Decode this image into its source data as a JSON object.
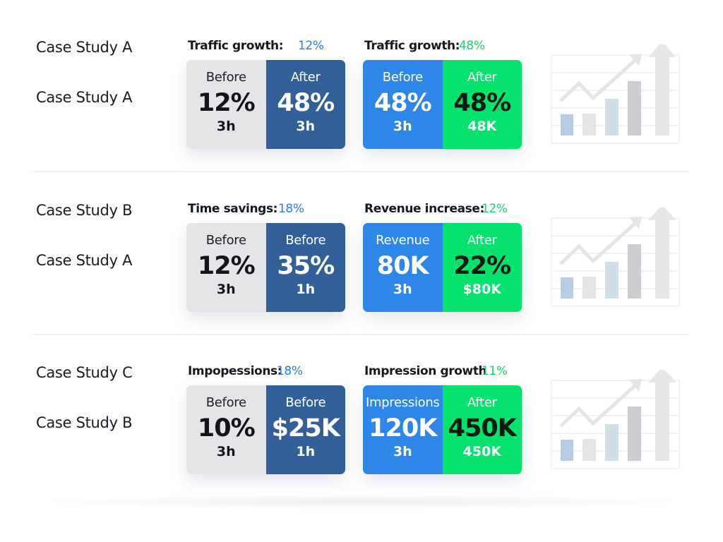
{
  "colors": {
    "light": "#e5e5e7",
    "dark_blue": "#335f98",
    "blue": "#2e86e8",
    "green": "#05e36e",
    "blue_text": "#2a7de1",
    "green_text": "#1fd46a"
  },
  "rows": [
    {
      "case_labels": [
        "Case Study A",
        "Case Study A"
      ],
      "left": {
        "title": "Traffic growth:",
        "pct": "12%",
        "before": {
          "label": "Before",
          "value": "12%",
          "sub": "3h"
        },
        "after": {
          "label": "After",
          "value": "48%",
          "sub": "3h"
        }
      },
      "right": {
        "title": "Traffic growth:",
        "pct": "48%",
        "before": {
          "label": "Before",
          "value": "48%",
          "sub": "3h"
        },
        "after": {
          "label": "After",
          "value": "48%",
          "sub": "48K"
        }
      }
    },
    {
      "case_labels": [
        "Case Study B",
        "Case Study A"
      ],
      "left": {
        "title": "Time savings:",
        "pct": "18%",
        "before": {
          "label": "Before",
          "value": "12%",
          "sub": "3h"
        },
        "after": {
          "label": "Before",
          "value": "35%",
          "sub": "1h"
        }
      },
      "right": {
        "title": "Revenue increase:",
        "pct": "12%",
        "before": {
          "label": "Revenue",
          "value": "80K",
          "sub": "3h"
        },
        "after": {
          "label": "After",
          "value": "22%",
          "sub": "$80K"
        }
      }
    },
    {
      "case_labels": [
        "Case Study C",
        "Case Study B"
      ],
      "left": {
        "title": "Impopessions:",
        "pct": "18%",
        "before": {
          "label": "Before",
          "value": "10%",
          "sub": "3h"
        },
        "after": {
          "label": "Before",
          "value": "$25K",
          "sub": "1h"
        }
      },
      "right": {
        "title": "Impression growth",
        "pct": "11%",
        "before": {
          "label": "Impressions",
          "value": "120K",
          "sub": "3h"
        },
        "after": {
          "label": "After",
          "value": "450K",
          "sub": "450K"
        }
      }
    }
  ]
}
